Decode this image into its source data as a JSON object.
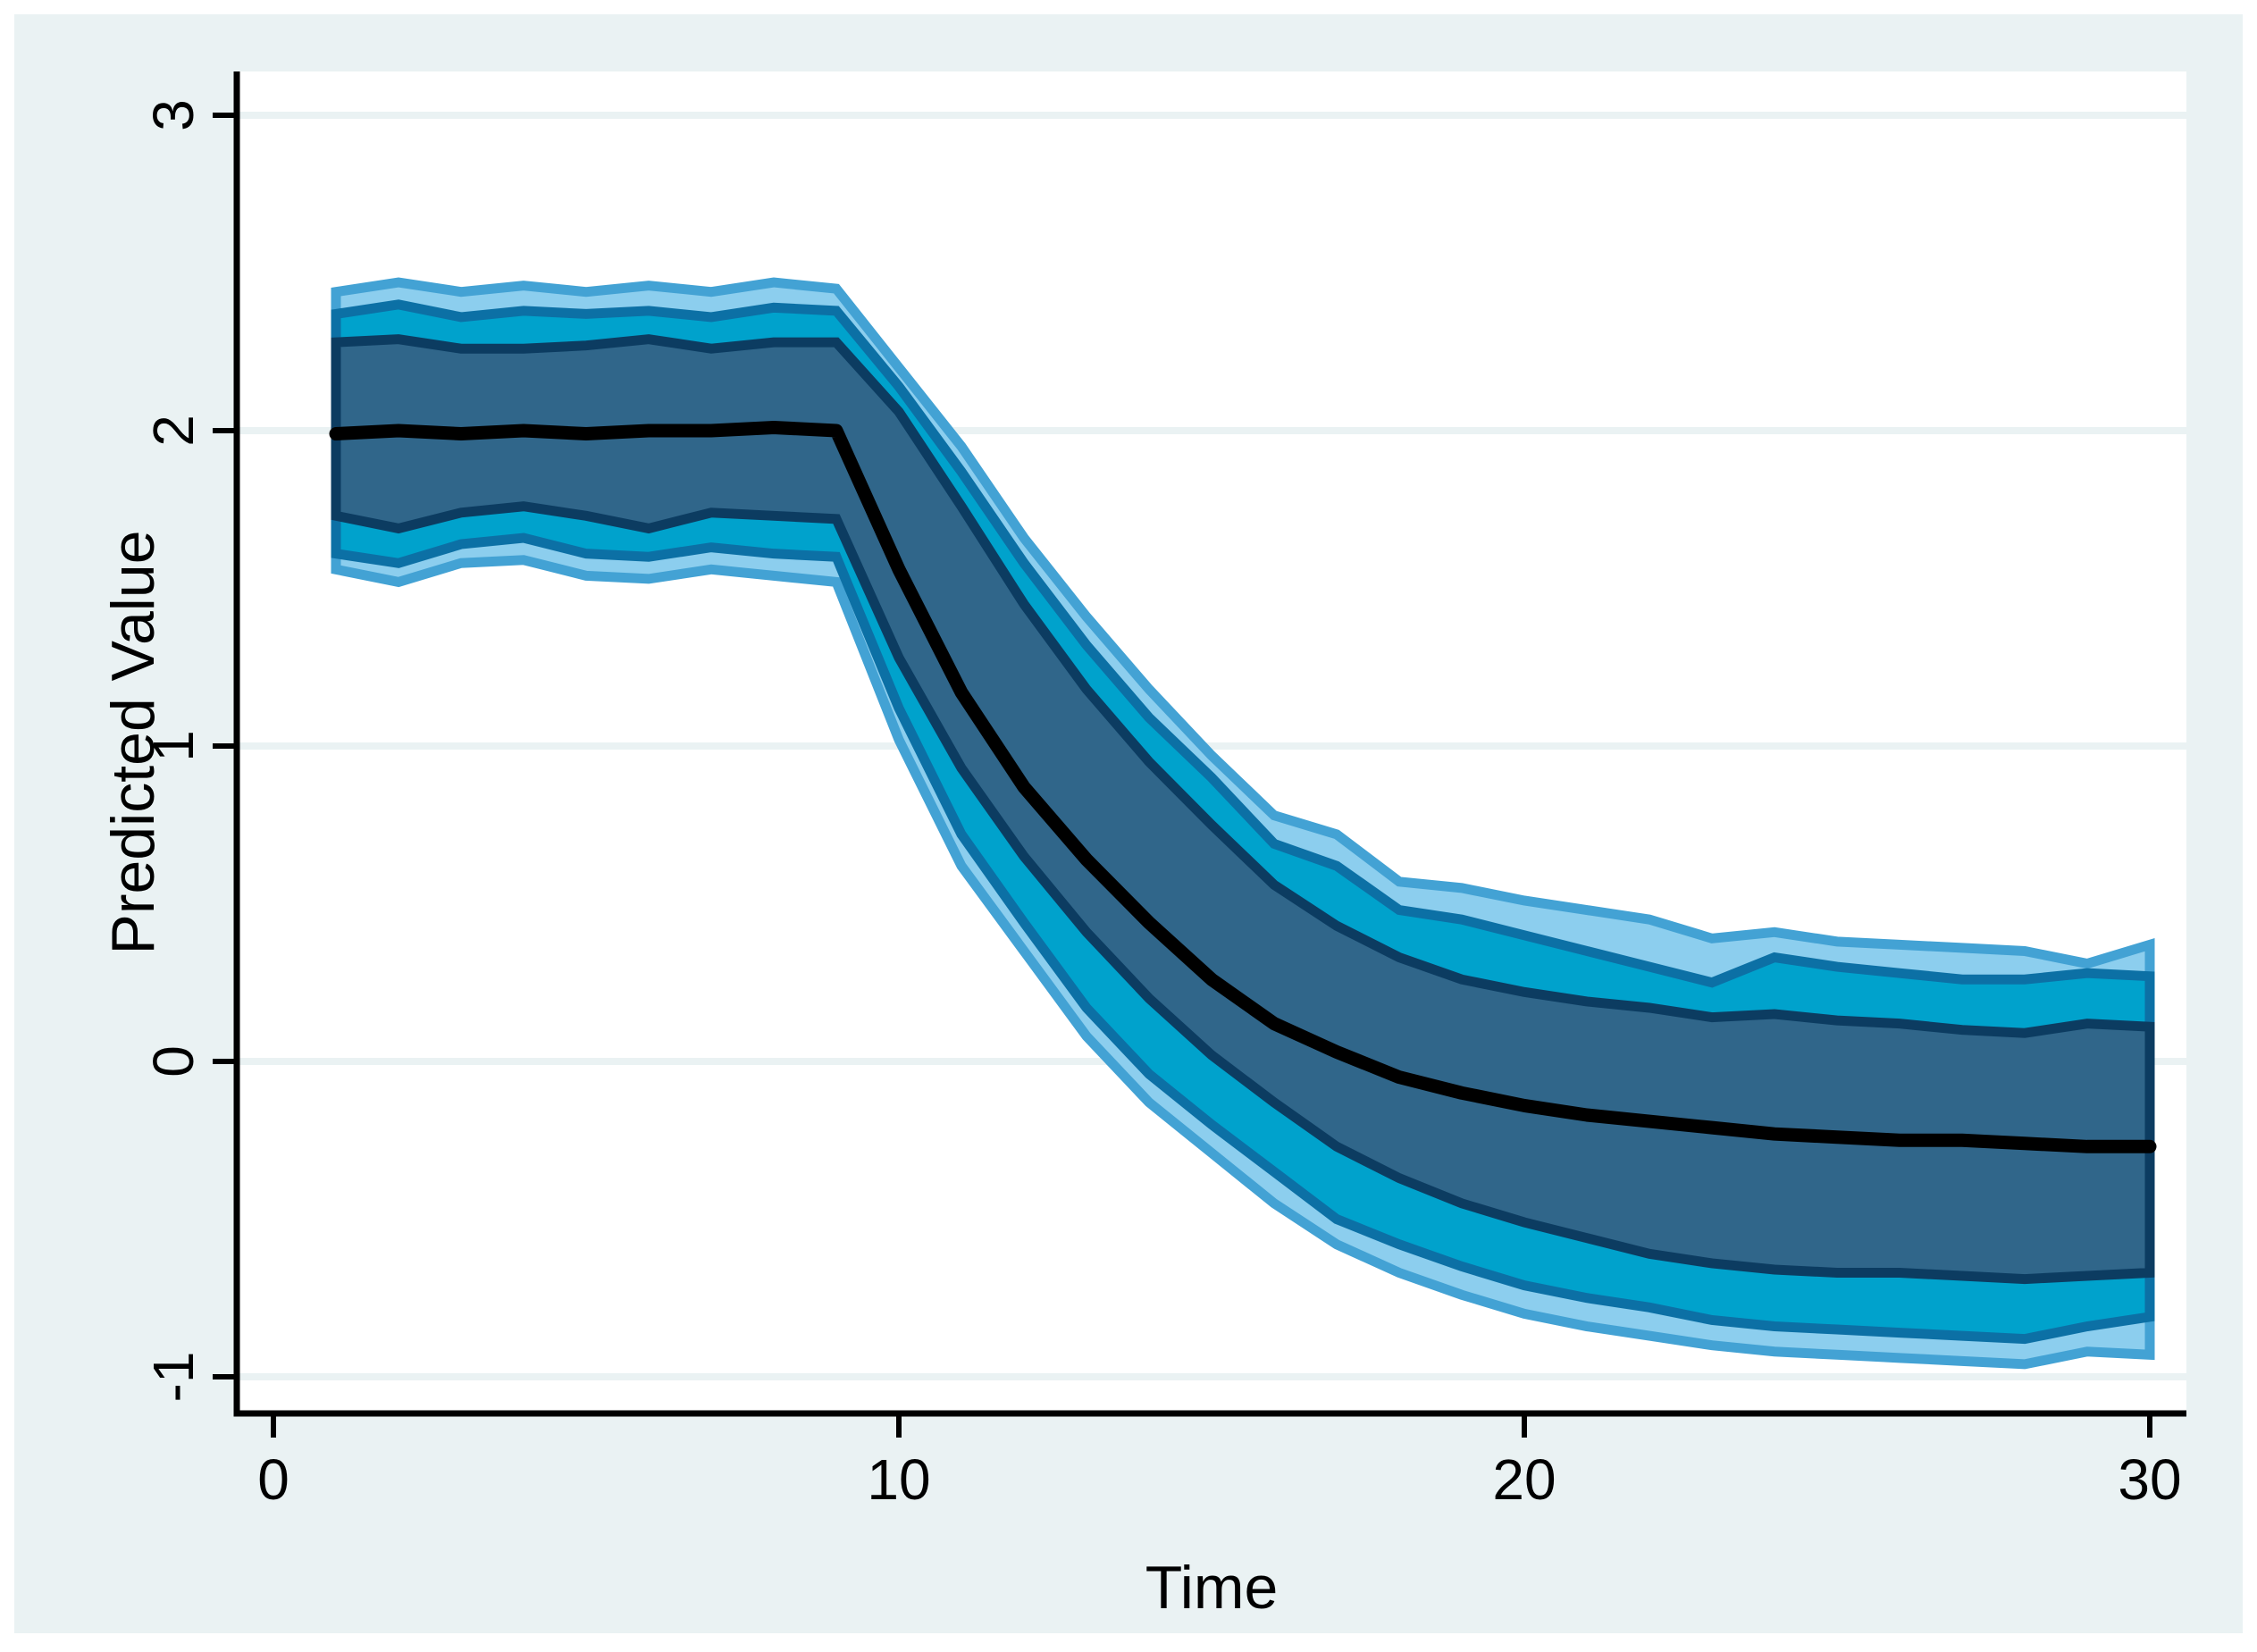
{
  "figure": {
    "background_color": "#eaf2f3",
    "plot_background_color": "#ffffff",
    "gridline_color": "#eaf2f3",
    "axis_color": "#000000"
  },
  "axes": {
    "x": {
      "label": "Time",
      "tick_labels": [
        "0",
        "10",
        "20",
        "30"
      ],
      "tick_values": [
        0,
        10,
        20,
        30
      ],
      "min": -0.6,
      "max": 30.6
    },
    "y": {
      "label": "Predicted Value",
      "tick_labels": [
        "-1",
        "0",
        "1",
        "2",
        "3"
      ],
      "tick_values": [
        -1,
        0,
        1,
        2,
        3
      ],
      "min": -1.12,
      "max": 3.14
    }
  },
  "chart_data": {
    "type": "area",
    "title": "",
    "xlabel": "Time",
    "ylabel": "Predicted Value",
    "grid": true,
    "legend_position": "none",
    "x": [
      1,
      2,
      3,
      4,
      5,
      6,
      7,
      8,
      9,
      10,
      11,
      12,
      13,
      14,
      15,
      16,
      17,
      18,
      19,
      20,
      21,
      22,
      23,
      24,
      25,
      26,
      27,
      28,
      29,
      30
    ],
    "bands": [
      {
        "name": "outer-band",
        "fill": "#8cceee",
        "stroke": "#43a2d4",
        "hi": [
          2.44,
          2.47,
          2.44,
          2.46,
          2.44,
          2.46,
          2.44,
          2.47,
          2.45,
          2.2,
          1.95,
          1.66,
          1.41,
          1.18,
          0.97,
          0.78,
          0.72,
          0.57,
          0.55,
          0.51,
          0.48,
          0.45,
          0.39,
          0.41,
          0.38,
          0.37,
          0.36,
          0.35,
          0.31,
          0.37
        ],
        "lo": [
          1.56,
          1.52,
          1.58,
          1.59,
          1.54,
          1.53,
          1.56,
          1.54,
          1.52,
          1.02,
          0.62,
          0.35,
          0.08,
          -0.13,
          -0.29,
          -0.45,
          -0.58,
          -0.67,
          -0.74,
          -0.8,
          -0.84,
          -0.87,
          -0.9,
          -0.92,
          -0.93,
          -0.94,
          -0.95,
          -0.96,
          -0.92,
          -0.93
        ]
      },
      {
        "name": "middle-band",
        "fill": "#00a2cc",
        "stroke": "#0c70a5",
        "hi": [
          2.37,
          2.4,
          2.36,
          2.38,
          2.37,
          2.38,
          2.36,
          2.39,
          2.38,
          2.14,
          1.87,
          1.58,
          1.32,
          1.09,
          0.9,
          0.69,
          0.62,
          0.48,
          0.45,
          0.4,
          0.35,
          0.3,
          0.25,
          0.33,
          0.3,
          0.28,
          0.26,
          0.26,
          0.28,
          0.27
        ],
        "lo": [
          1.61,
          1.58,
          1.64,
          1.66,
          1.61,
          1.6,
          1.63,
          1.61,
          1.6,
          1.12,
          0.72,
          0.44,
          0.17,
          -0.04,
          -0.2,
          -0.35,
          -0.5,
          -0.58,
          -0.65,
          -0.71,
          -0.75,
          -0.78,
          -0.82,
          -0.84,
          -0.85,
          -0.86,
          -0.87,
          -0.88,
          -0.84,
          -0.81
        ]
      },
      {
        "name": "inner-band",
        "fill": "#30668a",
        "stroke": "#0c3c61",
        "hi": [
          2.28,
          2.29,
          2.26,
          2.26,
          2.27,
          2.29,
          2.26,
          2.28,
          2.28,
          2.06,
          1.76,
          1.45,
          1.18,
          0.95,
          0.75,
          0.56,
          0.43,
          0.33,
          0.26,
          0.22,
          0.19,
          0.17,
          0.14,
          0.15,
          0.13,
          0.12,
          0.1,
          0.09,
          0.12,
          0.11
        ],
        "lo": [
          1.73,
          1.69,
          1.74,
          1.76,
          1.73,
          1.69,
          1.74,
          1.73,
          1.72,
          1.28,
          0.93,
          0.65,
          0.41,
          0.2,
          0.02,
          -0.13,
          -0.27,
          -0.37,
          -0.45,
          -0.51,
          -0.56,
          -0.61,
          -0.64,
          -0.66,
          -0.67,
          -0.67,
          -0.68,
          -0.69,
          -0.68,
          -0.67
        ]
      }
    ],
    "median_line": {
      "name": "predicted-median",
      "color": "#000000",
      "values": [
        1.99,
        2.0,
        1.99,
        2.0,
        1.99,
        2.0,
        2.0,
        2.01,
        2.0,
        1.56,
        1.17,
        0.87,
        0.64,
        0.44,
        0.26,
        0.12,
        0.03,
        -0.05,
        -0.1,
        -0.14,
        -0.17,
        -0.19,
        -0.21,
        -0.23,
        -0.24,
        -0.25,
        -0.25,
        -0.26,
        -0.27,
        -0.27
      ]
    }
  }
}
